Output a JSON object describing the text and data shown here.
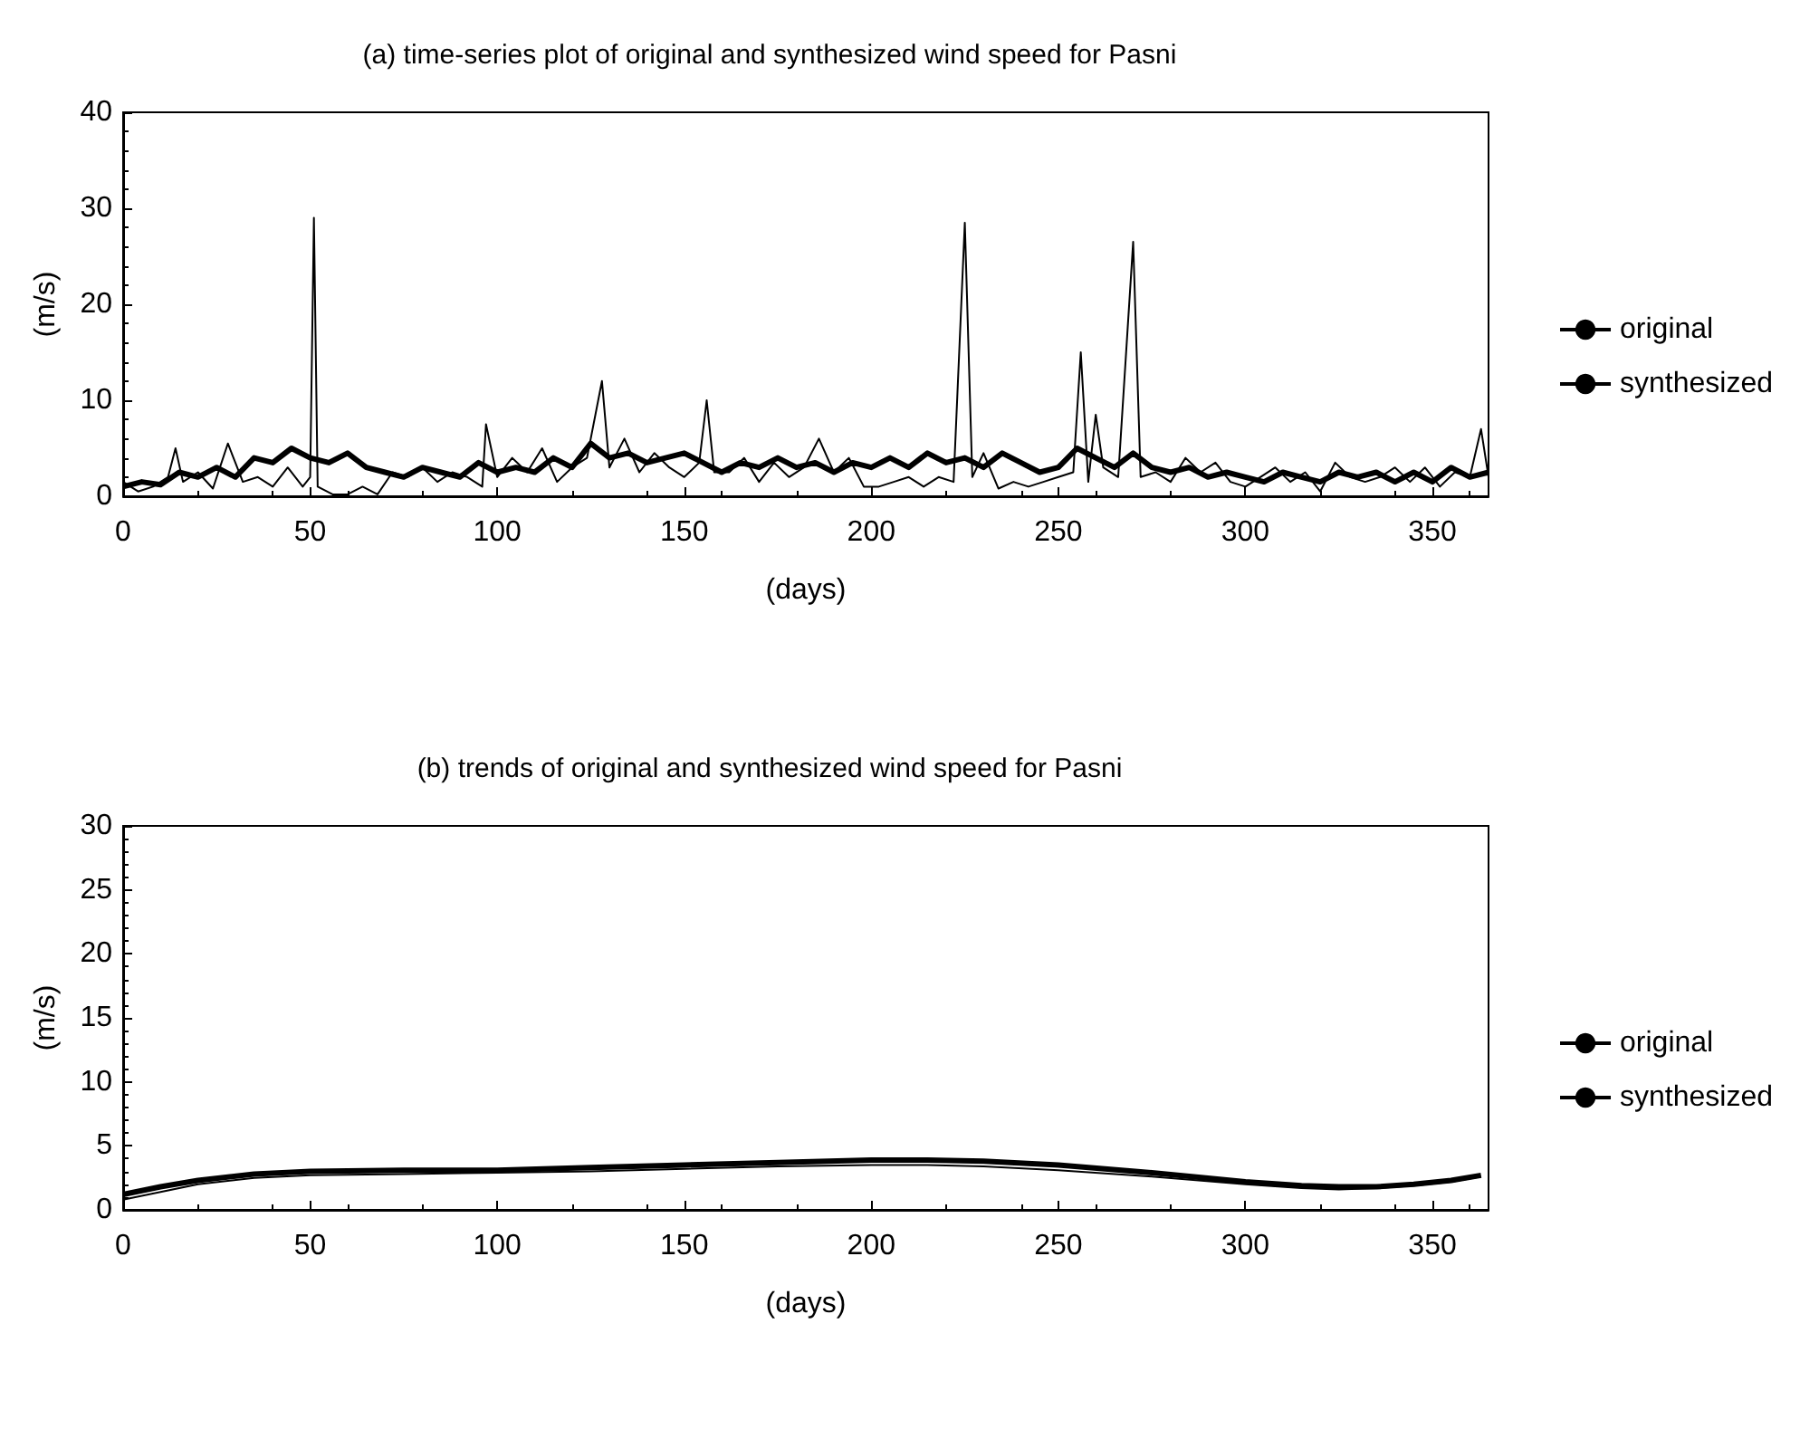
{
  "chart_data": [
    {
      "type": "line",
      "title": "(a) time-series plot of original and synthesized wind speed for Pasni",
      "xlabel": "(days)",
      "ylabel": "(m/s)",
      "xlim": [
        0,
        365
      ],
      "ylim": [
        0,
        40
      ],
      "xticks": [
        0,
        50,
        100,
        150,
        200,
        250,
        300,
        350
      ],
      "yticks": [
        0,
        10,
        20,
        30,
        40
      ],
      "grid": false,
      "legend": "right",
      "marker": "none",
      "line_style": "solid",
      "series": [
        {
          "name": "original",
          "color": "#000000",
          "x": [
            0,
            4,
            8,
            12,
            14,
            16,
            20,
            24,
            28,
            32,
            36,
            40,
            44,
            48,
            50,
            51,
            52,
            56,
            60,
            64,
            68,
            72,
            76,
            80,
            84,
            88,
            92,
            96,
            97,
            100,
            104,
            108,
            112,
            116,
            120,
            124,
            128,
            130,
            134,
            138,
            142,
            146,
            150,
            154,
            156,
            158,
            162,
            166,
            170,
            174,
            178,
            182,
            186,
            190,
            194,
            198,
            202,
            206,
            210,
            214,
            218,
            222,
            225,
            227,
            230,
            234,
            238,
            242,
            246,
            250,
            254,
            256,
            258,
            260,
            262,
            266,
            270,
            272,
            276,
            280,
            284,
            288,
            292,
            296,
            300,
            304,
            308,
            312,
            316,
            320,
            324,
            328,
            332,
            336,
            340,
            344,
            348,
            352,
            356,
            360,
            363,
            365
          ],
          "values": [
            1.5,
            0.5,
            1.0,
            2.0,
            5.0,
            1.5,
            2.5,
            0.8,
            5.5,
            1.5,
            2.0,
            1.0,
            3.0,
            1.0,
            2.0,
            29.0,
            1.0,
            0.2,
            0.2,
            1.0,
            0.2,
            2.5,
            2.0,
            3.0,
            1.5,
            2.5,
            2.0,
            1.0,
            7.5,
            2.0,
            4.0,
            2.5,
            5.0,
            1.5,
            3.0,
            4.0,
            12.0,
            3.0,
            6.0,
            2.5,
            4.5,
            3.0,
            2.0,
            3.5,
            10.0,
            2.5,
            2.5,
            4.0,
            1.5,
            3.5,
            2.0,
            3.0,
            6.0,
            2.5,
            4.0,
            1.0,
            1.0,
            1.5,
            2.0,
            1.0,
            2.0,
            1.5,
            28.5,
            2.0,
            4.5,
            0.8,
            1.5,
            1.0,
            1.5,
            2.0,
            2.5,
            15.0,
            1.5,
            8.5,
            3.0,
            2.0,
            26.5,
            2.0,
            2.5,
            1.5,
            4.0,
            2.5,
            3.5,
            1.5,
            1.0,
            2.0,
            3.0,
            1.5,
            2.5,
            0.5,
            3.5,
            2.0,
            1.5,
            2.0,
            3.0,
            1.5,
            3.0,
            1.0,
            2.5,
            2.0,
            7.0,
            2.0
          ]
        },
        {
          "name": "synthesized",
          "color": "#000000",
          "x": [
            0,
            5,
            10,
            15,
            20,
            25,
            30,
            35,
            40,
            45,
            50,
            55,
            60,
            65,
            70,
            75,
            80,
            85,
            90,
            95,
            100,
            105,
            110,
            115,
            120,
            125,
            130,
            135,
            140,
            145,
            150,
            155,
            160,
            165,
            170,
            175,
            180,
            185,
            190,
            195,
            200,
            205,
            210,
            215,
            220,
            225,
            230,
            235,
            240,
            245,
            250,
            255,
            260,
            265,
            270,
            275,
            280,
            285,
            290,
            295,
            300,
            305,
            310,
            315,
            320,
            325,
            330,
            335,
            340,
            345,
            350,
            355,
            360,
            365
          ],
          "values": [
            1.0,
            1.5,
            1.2,
            2.5,
            2.0,
            3.0,
            2.0,
            4.0,
            3.5,
            5.0,
            4.0,
            3.5,
            4.5,
            3.0,
            2.5,
            2.0,
            3.0,
            2.5,
            2.0,
            3.5,
            2.5,
            3.0,
            2.5,
            4.0,
            3.0,
            5.5,
            4.0,
            4.5,
            3.5,
            4.0,
            4.5,
            3.5,
            2.5,
            3.5,
            3.0,
            4.0,
            3.0,
            3.5,
            2.5,
            3.5,
            3.0,
            4.0,
            3.0,
            4.5,
            3.5,
            4.0,
            3.0,
            4.5,
            3.5,
            2.5,
            3.0,
            5.0,
            4.0,
            3.0,
            4.5,
            3.0,
            2.5,
            3.0,
            2.0,
            2.5,
            2.0,
            1.5,
            2.5,
            2.0,
            1.5,
            2.5,
            2.0,
            2.5,
            1.5,
            2.5,
            1.5,
            3.0,
            2.0,
            2.5
          ]
        }
      ]
    },
    {
      "type": "line",
      "title": "(b) trends of original and synthesized wind speed for Pasni",
      "xlabel": "(days)",
      "ylabel": "(m/s)",
      "xlim": [
        0,
        365
      ],
      "ylim": [
        0,
        30
      ],
      "xticks": [
        0,
        50,
        100,
        150,
        200,
        250,
        300,
        350
      ],
      "yticks": [
        0,
        5,
        10,
        15,
        20,
        25,
        30
      ],
      "grid": false,
      "legend": "right",
      "marker": "none",
      "line_style": "solid",
      "series": [
        {
          "name": "original",
          "color": "#000000",
          "x": [
            0,
            10,
            20,
            35,
            50,
            75,
            100,
            125,
            150,
            175,
            200,
            215,
            230,
            250,
            275,
            300,
            315,
            325,
            335,
            345,
            355,
            363
          ],
          "values": [
            0.8,
            1.4,
            2.0,
            2.5,
            2.7,
            2.8,
            2.9,
            3.0,
            3.2,
            3.4,
            3.5,
            3.5,
            3.4,
            3.1,
            2.6,
            2.0,
            1.7,
            1.6,
            1.7,
            1.9,
            2.2,
            2.6
          ]
        },
        {
          "name": "synthesized",
          "color": "#000000",
          "x": [
            0,
            10,
            20,
            35,
            50,
            75,
            100,
            125,
            150,
            175,
            200,
            215,
            230,
            250,
            275,
            300,
            315,
            325,
            335,
            345,
            355,
            363
          ],
          "values": [
            1.2,
            1.8,
            2.3,
            2.8,
            3.0,
            3.1,
            3.1,
            3.3,
            3.5,
            3.7,
            3.9,
            3.9,
            3.8,
            3.5,
            2.9,
            2.2,
            1.9,
            1.8,
            1.8,
            2.0,
            2.3,
            2.7
          ]
        }
      ]
    }
  ]
}
